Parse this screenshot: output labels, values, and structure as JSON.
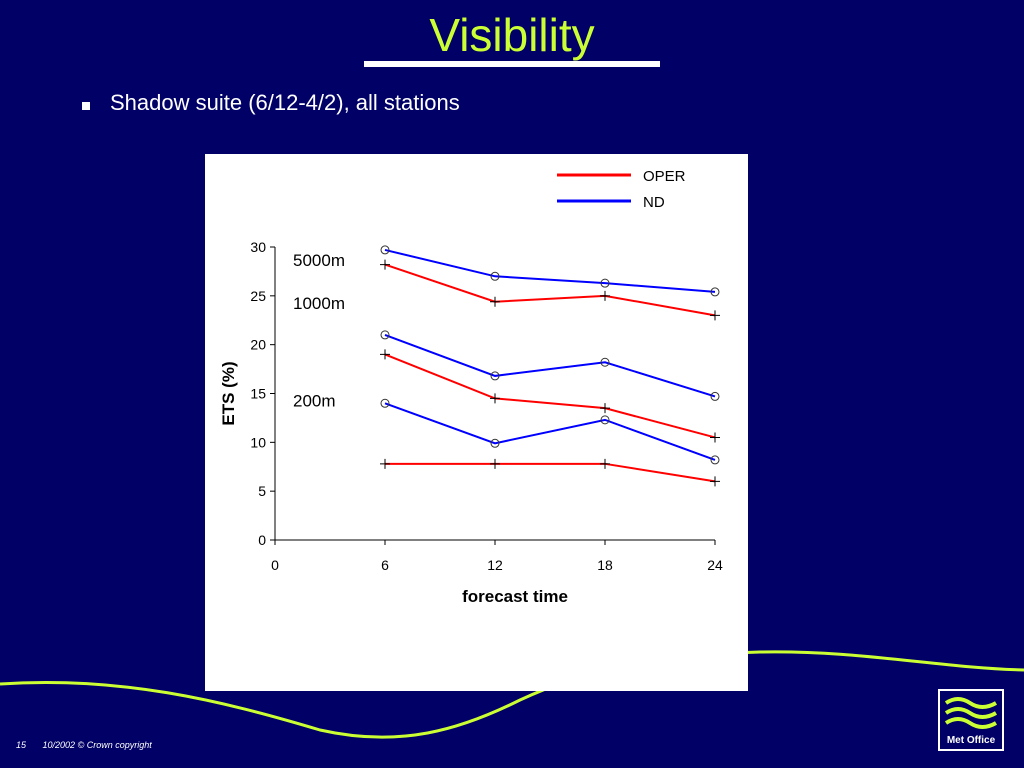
{
  "slide": {
    "title": "Visibility",
    "bullet": "Shadow suite (6/12-4/2), all stations",
    "page_number": "15",
    "footer": "10/2002 © Crown copyright",
    "logo_text": "Met Office"
  },
  "colors": {
    "background": "#000066",
    "title": "#ccff33",
    "oper": "#ff0000",
    "nd": "#0000ff"
  },
  "chart_data": {
    "type": "line",
    "xlabel": "forecast time",
    "ylabel": "ETS (%)",
    "xlim": [
      0,
      24
    ],
    "ylim": [
      0,
      30
    ],
    "xticks": [
      0,
      6,
      12,
      18,
      24
    ],
    "yticks": [
      0,
      5,
      10,
      15,
      20,
      25,
      30
    ],
    "x": [
      6,
      12,
      18,
      24
    ],
    "legend": [
      "OPER",
      "ND"
    ],
    "legend_position": "top-right",
    "groups": [
      {
        "label": "5000m",
        "series": [
          {
            "name": "OPER",
            "values": [
              28.2,
              24.4,
              25.0,
              23.0
            ]
          },
          {
            "name": "ND",
            "values": [
              29.7,
              27.0,
              26.3,
              25.4
            ]
          }
        ]
      },
      {
        "label": "1000m",
        "series": [
          {
            "name": "OPER",
            "values": [
              19.0,
              14.5,
              13.5,
              10.5
            ]
          },
          {
            "name": "ND",
            "values": [
              21.0,
              16.8,
              18.2,
              14.7
            ]
          }
        ]
      },
      {
        "label": "200m",
        "series": [
          {
            "name": "OPER",
            "values": [
              7.8,
              7.8,
              7.8,
              6.0
            ]
          },
          {
            "name": "ND",
            "values": [
              14.0,
              9.9,
              12.3,
              8.2
            ]
          }
        ]
      }
    ]
  }
}
